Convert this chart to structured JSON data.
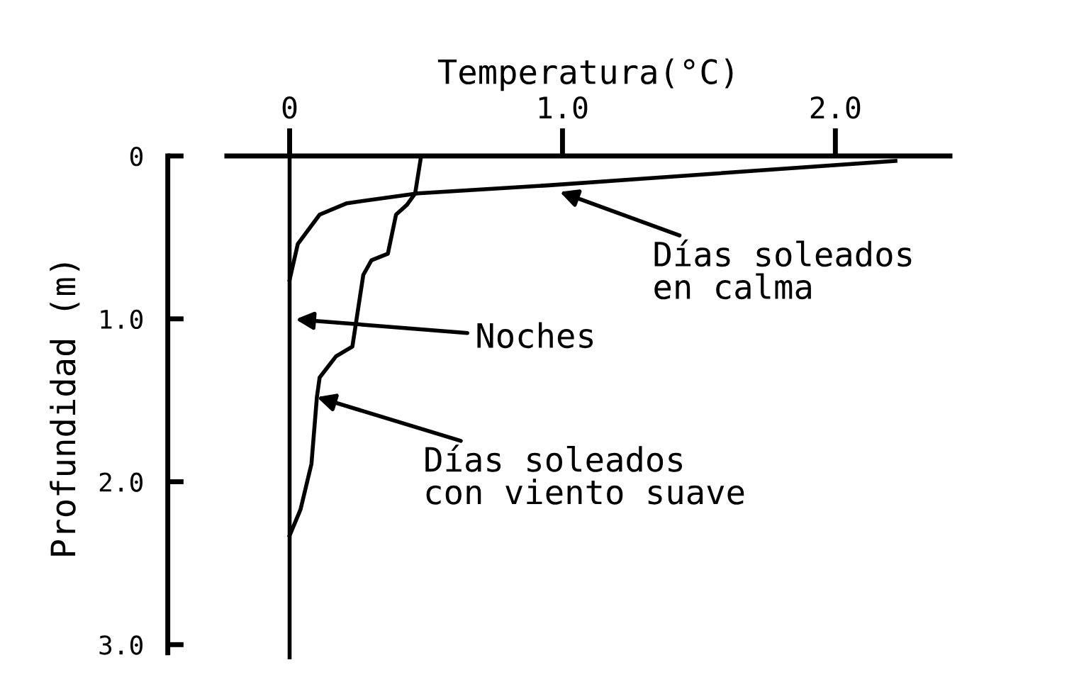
{
  "chart_data": {
    "type": "line",
    "xlabel": "Temperatura(°C)",
    "ylabel": "Profundidad (m)",
    "xlim": [
      -0.23,
      2.42
    ],
    "xticks": [
      0,
      {
        "value": 1,
        "label": "1.0"
      },
      {
        "value": 2,
        "label": "2.0"
      }
    ],
    "ylim": [
      3.09,
      0
    ],
    "yticks": [
      0,
      {
        "value": 1,
        "label": "1.0"
      },
      {
        "value": 2,
        "label": "2.0"
      },
      {
        "value": 3,
        "label": "3.0"
      }
    ],
    "series": [
      {
        "color": "#000000",
        "x": [
          2.22,
          0.95,
          0.47,
          0.21,
          0.11,
          0.03,
          0
        ],
        "values": [
          0.03,
          0.18,
          0.23,
          0.29,
          0.36,
          0.54,
          0.76
        ]
      },
      {
        "color": "#000000",
        "x": [
          0.48,
          0.46,
          0.43,
          0.39,
          0.36,
          0.3,
          0.27,
          0.23,
          0.17,
          0.11,
          0.1,
          0.08,
          0.04,
          0
        ],
        "values": [
          0.02,
          0.23,
          0.3,
          0.36,
          0.6,
          0.64,
          0.73,
          1.17,
          1.23,
          1.36,
          1.48,
          1.89,
          2.17,
          2.33
        ]
      }
    ],
    "ref_lines": [
      {
        "axis": "x",
        "value": 0,
        "color": "#000000",
        "label": "Noches"
      }
    ],
    "annotations": [
      {
        "text": "Días soleados\nen calma",
        "x": 0.99,
        "y": 0.22
      },
      {
        "text": "Días soleados\ncon viento suave",
        "x": 0.1,
        "y": 1.48
      }
    ],
    "marker": "none",
    "line_style": "solid"
  }
}
